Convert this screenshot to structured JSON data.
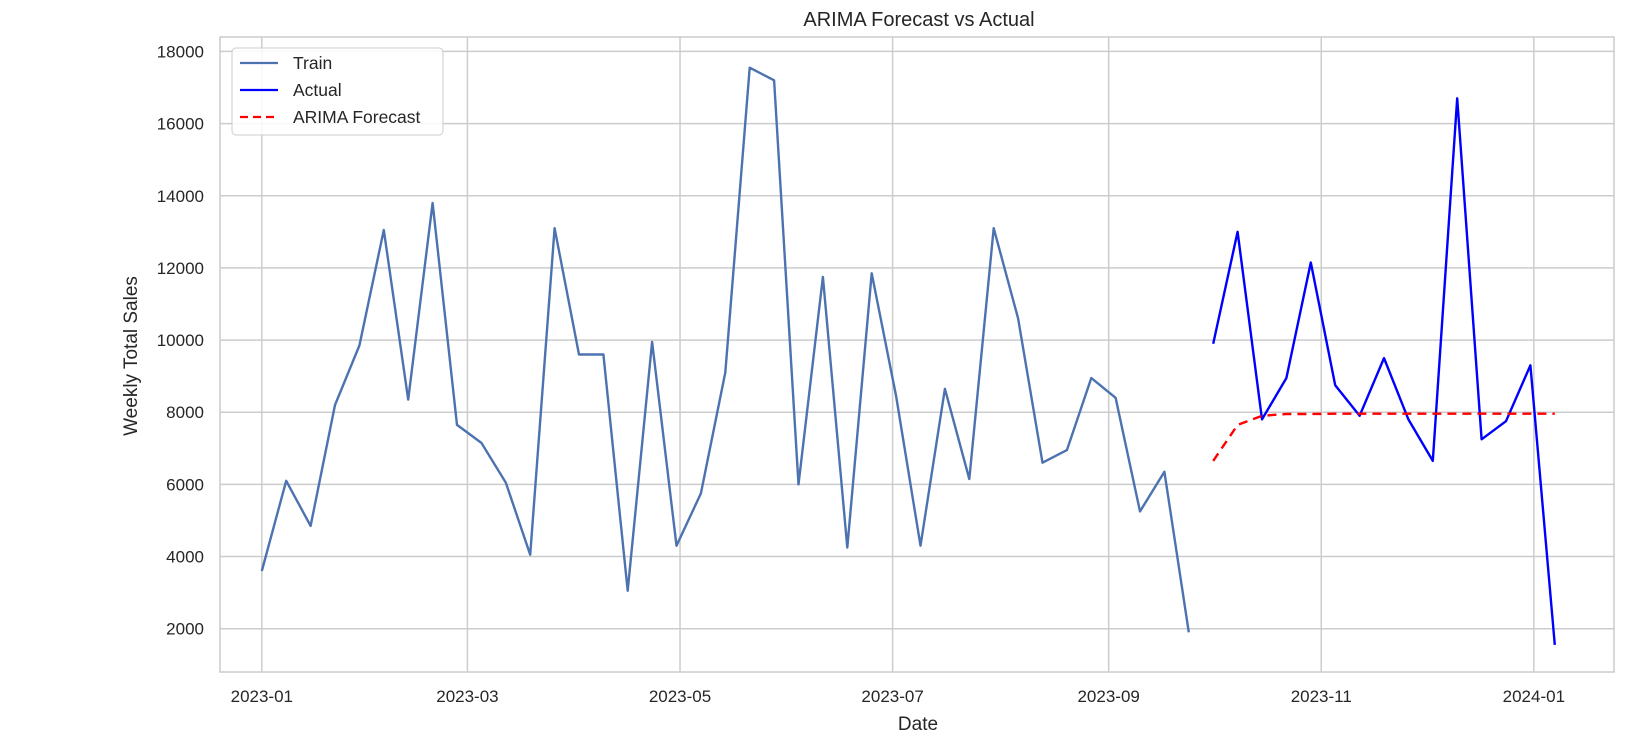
{
  "chart_data": {
    "type": "line",
    "title": "ARIMA Forecast vs Actual",
    "xlabel": "Date",
    "ylabel": "Weekly Total Sales",
    "x_ticks": [
      "2023-01-01",
      "2023-03-01",
      "2023-05-01",
      "2023-07-01",
      "2023-09-01",
      "2023-11-01",
      "2024-01-01"
    ],
    "x_tick_labels": [
      "2023-01",
      "2023-03",
      "2023-05",
      "2023-07",
      "2023-09",
      "2023-11",
      "2024-01"
    ],
    "y_ticks": [
      2000,
      4000,
      6000,
      8000,
      10000,
      12000,
      14000,
      16000,
      18000
    ],
    "xlim": [
      "2022-12-20",
      "2024-01-24"
    ],
    "ylim": [
      800,
      18400
    ],
    "grid": true,
    "legend_position": "top-left",
    "series": [
      {
        "name": "Train",
        "color": "#4c72b0",
        "style": "solid",
        "x": [
          "2023-01-01",
          "2023-01-08",
          "2023-01-15",
          "2023-01-22",
          "2023-01-29",
          "2023-02-05",
          "2023-02-12",
          "2023-02-19",
          "2023-02-26",
          "2023-03-05",
          "2023-03-12",
          "2023-03-19",
          "2023-03-26",
          "2023-04-02",
          "2023-04-09",
          "2023-04-16",
          "2023-04-23",
          "2023-04-30",
          "2023-05-07",
          "2023-05-14",
          "2023-05-21",
          "2023-05-28",
          "2023-06-04",
          "2023-06-11",
          "2023-06-18",
          "2023-06-25",
          "2023-07-02",
          "2023-07-09",
          "2023-07-16",
          "2023-07-23",
          "2023-07-30",
          "2023-08-06",
          "2023-08-13",
          "2023-08-20",
          "2023-08-27",
          "2023-09-03",
          "2023-09-10",
          "2023-09-17",
          "2023-09-24"
        ],
        "values": [
          3600,
          6100,
          4850,
          8200,
          9850,
          13050,
          8350,
          13800,
          7650,
          7150,
          6050,
          4050,
          13100,
          9600,
          9600,
          3050,
          9950,
          4300,
          5750,
          9100,
          17550,
          17200,
          6000,
          11750,
          4250,
          11850,
          8450,
          4300,
          8650,
          6150,
          13100,
          10600,
          6600,
          6950,
          8950,
          8400,
          5250,
          6350,
          1900
        ]
      },
      {
        "name": "Actual",
        "color": "#0000ff",
        "style": "solid",
        "x": [
          "2023-10-01",
          "2023-10-08",
          "2023-10-15",
          "2023-10-22",
          "2023-10-29",
          "2023-11-05",
          "2023-11-12",
          "2023-11-19",
          "2023-11-26",
          "2023-12-03",
          "2023-12-10",
          "2023-12-17",
          "2023-12-24",
          "2023-12-31",
          "2024-01-07"
        ],
        "values": [
          9900,
          13000,
          7800,
          8950,
          12150,
          8750,
          7900,
          9500,
          7800,
          6650,
          16700,
          7250,
          7750,
          9300,
          1550
        ]
      },
      {
        "name": "ARIMA Forecast",
        "color": "#ff0000",
        "style": "dashed",
        "x": [
          "2023-10-01",
          "2023-10-08",
          "2023-10-15",
          "2023-10-22",
          "2023-10-29",
          "2023-11-05",
          "2023-11-12",
          "2023-11-19",
          "2023-11-26",
          "2023-12-03",
          "2023-12-10",
          "2023-12-17",
          "2023-12-24",
          "2023-12-31",
          "2024-01-07"
        ],
        "values": [
          6650,
          7650,
          7900,
          7950,
          7950,
          7960,
          7960,
          7960,
          7960,
          7960,
          7960,
          7960,
          7960,
          7960,
          7960
        ]
      }
    ]
  }
}
